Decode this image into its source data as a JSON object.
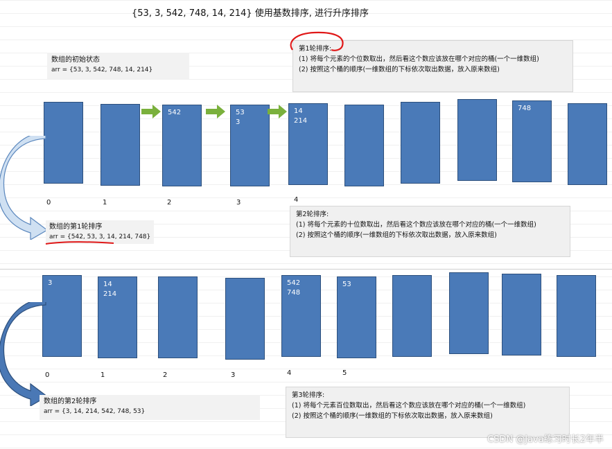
{
  "title": "{53, 3, 542, 748, 14, 214} 使用基数排序, 进行升序排序",
  "round1_note": {
    "heading": "第1轮排序:",
    "line1": "(1) 将每个元素的个位数取出，然后看这个数应该放在哪个对应的桶(一个一维数组)",
    "line2": "(2) 按照这个桶的顺序(一维数组的下标依次取出数据，放入原来数组)"
  },
  "initial_state": {
    "label": "数组的初始状态",
    "value": "arr = {53, 3, 542, 748, 14, 214}"
  },
  "round1_buckets": [
    {
      "items": []
    },
    {
      "items": []
    },
    {
      "items": [
        "542"
      ]
    },
    {
      "items": [
        "53",
        "3"
      ]
    },
    {
      "items": [
        "14",
        "214"
      ]
    },
    {
      "items": []
    },
    {
      "items": []
    },
    {
      "items": []
    },
    {
      "items": [
        "748"
      ]
    },
    {
      "items": []
    }
  ],
  "round1_indices": [
    "0",
    "1",
    "2",
    "3",
    "4"
  ],
  "round2_note": {
    "heading": "第2轮排序:",
    "line1": "(1) 将每个元素的十位数取出，然后看这个数应该放在哪个对应的桶(一个一维数组)",
    "line2": "(2) 按照这个桶的顺序(一维数组的下标依次取出数据，放入原来数组)"
  },
  "after_round1": {
    "label": "数组的第1轮排序",
    "value": "arr = {542, 53, 3, 14, 214, 748}"
  },
  "round2_buckets": [
    {
      "items": [
        "3"
      ]
    },
    {
      "items": [
        "14",
        "214"
      ]
    },
    {
      "items": []
    },
    {
      "items": []
    },
    {
      "items": [
        "542",
        "748"
      ]
    },
    {
      "items": [
        "53"
      ]
    },
    {
      "items": []
    },
    {
      "items": []
    },
    {
      "items": []
    },
    {
      "items": []
    }
  ],
  "round2_indices": [
    "0",
    "1",
    "2",
    "3",
    "4",
    "5"
  ],
  "after_round2": {
    "label": "数组的第2轮排序",
    "value": "arr = {3, 14, 214, 542, 748, 53}"
  },
  "round3_note": {
    "heading": "第3轮排序:",
    "line1": "(1) 将每个元素百位数取出，然后看这个数应该放在哪个对应的桶(一个一维数组)",
    "line2": "(2) 按照这个桶的顺序(一维数组的下标依次取出数据，放入原来数组)"
  },
  "watermark": "CSDN @Java练习时长2年半",
  "colors": {
    "bucket": "#4a7ab8",
    "arrow_green": "#7ab03c",
    "highlight_red": "#e01818",
    "curved_arrow": "#bcd3ea"
  }
}
